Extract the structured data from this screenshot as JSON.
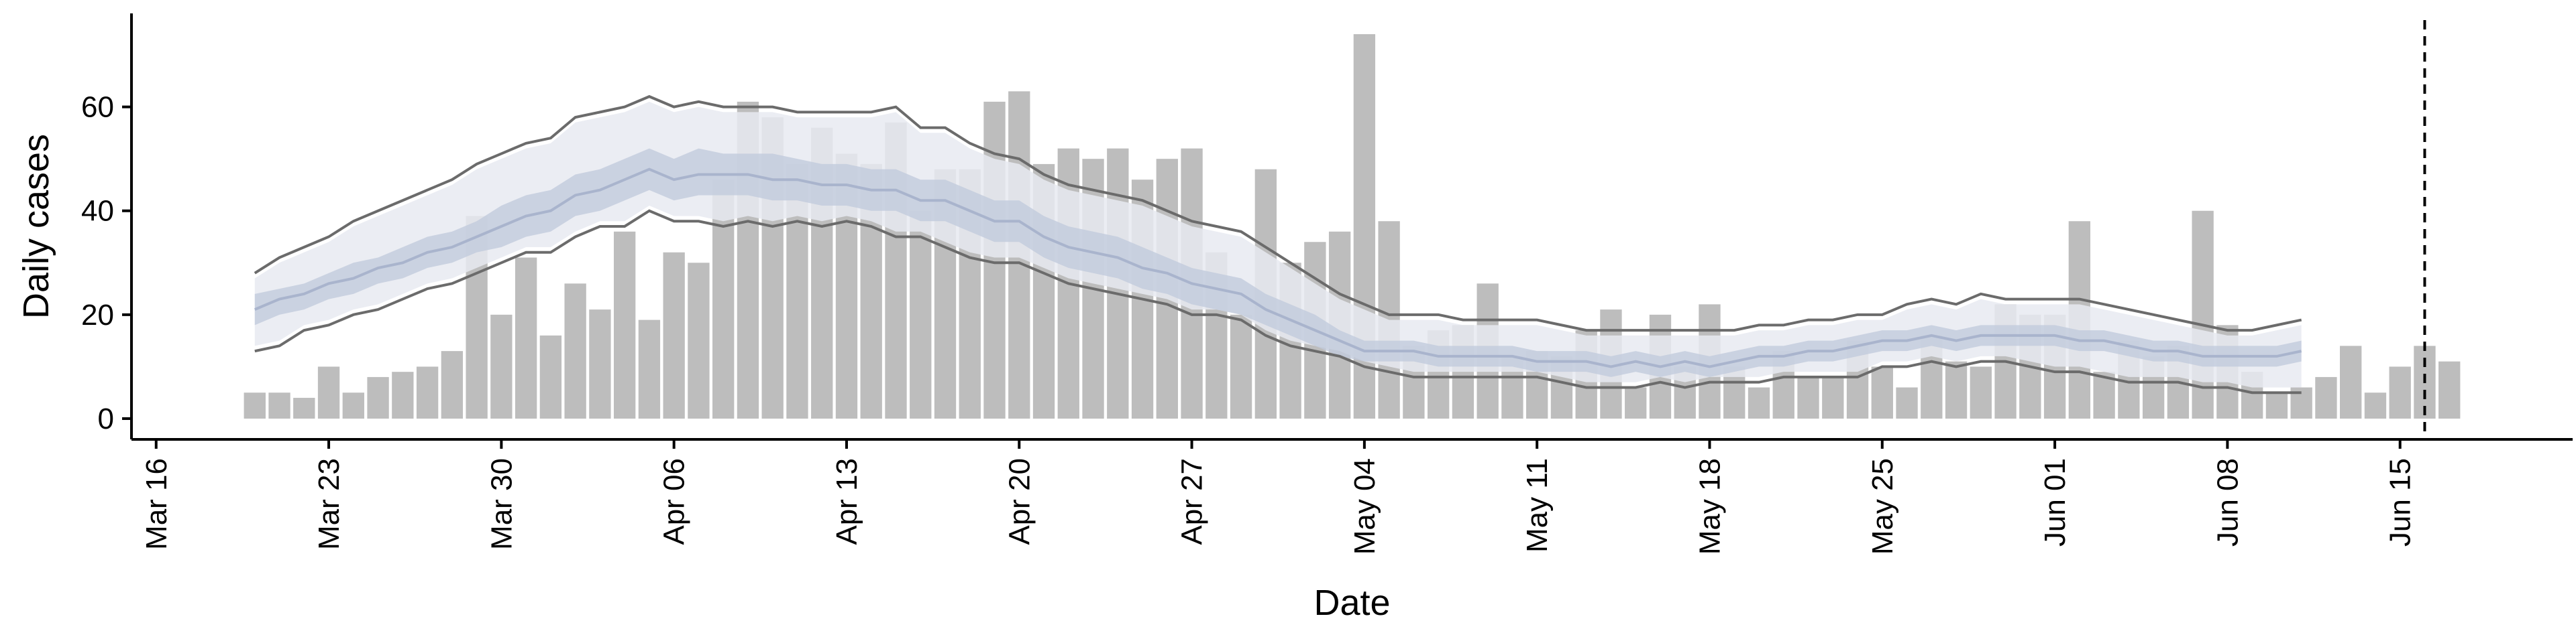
{
  "chart_data": {
    "type": "bar",
    "title": "",
    "xlabel": "Date",
    "ylabel": "Daily cases",
    "ylim": [
      -4,
      78
    ],
    "yticks": [
      0,
      20,
      40,
      60
    ],
    "x_axis_type": "date",
    "xlim": [
      "2020-03-15",
      "2020-06-22"
    ],
    "xticks": [
      {
        "date": "2020-03-16",
        "label": "Mar 16"
      },
      {
        "date": "2020-03-23",
        "label": "Mar 23"
      },
      {
        "date": "2020-03-30",
        "label": "Mar 30"
      },
      {
        "date": "2020-04-06",
        "label": "Apr 06"
      },
      {
        "date": "2020-04-13",
        "label": "Apr 13"
      },
      {
        "date": "2020-04-20",
        "label": "Apr 20"
      },
      {
        "date": "2020-04-27",
        "label": "Apr 27"
      },
      {
        "date": "2020-05-04",
        "label": "May 04"
      },
      {
        "date": "2020-05-11",
        "label": "May 11"
      },
      {
        "date": "2020-05-18",
        "label": "May 18"
      },
      {
        "date": "2020-05-25",
        "label": "May 25"
      },
      {
        "date": "2020-06-01",
        "label": "Jun 01"
      },
      {
        "date": "2020-06-08",
        "label": "Jun 08"
      },
      {
        "date": "2020-06-15",
        "label": "Jun 15"
      }
    ],
    "grid": false,
    "legend": "none",
    "colors": {
      "bars": "#bdbdbd",
      "outer_band": "#e8eaf1",
      "inner_band": "#c2cadc",
      "median_line": "#a9b4cd",
      "bound_lines": "#6b6b6b",
      "vline": "#000000"
    },
    "vline_date": "2020-06-16",
    "bars": {
      "start_date": "2020-03-20",
      "values": [
        5,
        5,
        4,
        10,
        5,
        8,
        9,
        10,
        13,
        39,
        20,
        31,
        16,
        26,
        21,
        36,
        19,
        32,
        30,
        46,
        61,
        58,
        49,
        56,
        51,
        49,
        57,
        40,
        48,
        48,
        61,
        63,
        49,
        52,
        50,
        52,
        46,
        50,
        52,
        32,
        20,
        48,
        30,
        34,
        36,
        74,
        38,
        14,
        17,
        18,
        26,
        12,
        13,
        12,
        17,
        21,
        6,
        20,
        10,
        22,
        10,
        6,
        13,
        8,
        8,
        15,
        10,
        6,
        16,
        11,
        10,
        22,
        20,
        20,
        38,
        9,
        15,
        12,
        14,
        40,
        18,
        9,
        5,
        6,
        8,
        14,
        5,
        10,
        14,
        11
      ]
    },
    "series": [
      {
        "start_date": "2020-03-20",
        "upper": [
          28,
          31,
          33,
          35,
          38,
          40,
          42,
          44,
          46,
          49,
          51,
          53,
          54,
          58,
          59,
          60,
          62,
          60,
          61,
          60,
          60,
          60,
          59,
          59,
          59,
          59,
          60,
          56,
          56,
          53,
          51,
          50,
          47,
          45,
          44,
          43,
          42,
          40,
          38,
          37,
          36,
          33,
          30,
          27,
          24,
          22,
          20,
          20,
          20,
          19,
          19,
          19,
          19,
          18,
          17,
          17,
          17,
          17,
          17,
          17,
          17,
          18,
          18,
          19,
          19,
          20,
          20,
          22,
          23,
          22,
          24,
          23,
          23,
          23,
          23,
          22,
          21,
          20,
          19,
          18,
          17,
          17,
          18,
          19
        ],
        "outer_upper": [
          27,
          30,
          32,
          34,
          37,
          39,
          41,
          43,
          45,
          48,
          50,
          52,
          53,
          57,
          58,
          59,
          61,
          59,
          60,
          59,
          59,
          59,
          58,
          58,
          58,
          58,
          59,
          55,
          55,
          52,
          50,
          49,
          46,
          44,
          43,
          42,
          41,
          39,
          37,
          36,
          35,
          32,
          29,
          26,
          23,
          21,
          19,
          19,
          19,
          18,
          18,
          18,
          18,
          17,
          16,
          16,
          16,
          16,
          16,
          16,
          16,
          17,
          17,
          18,
          18,
          19,
          19,
          21,
          22,
          21,
          23,
          22,
          22,
          22,
          22,
          21,
          20,
          19,
          18,
          17,
          16,
          16,
          17,
          18
        ],
        "inner_upper": [
          24,
          25,
          26,
          28,
          30,
          31,
          33,
          35,
          36,
          38,
          41,
          43,
          44,
          47,
          48,
          50,
          52,
          50,
          52,
          51,
          51,
          51,
          50,
          49,
          49,
          48,
          48,
          46,
          46,
          44,
          42,
          42,
          39,
          37,
          36,
          35,
          33,
          31,
          29,
          28,
          27,
          24,
          22,
          20,
          17,
          15,
          15,
          15,
          14,
          14,
          14,
          14,
          13,
          13,
          13,
          12,
          13,
          12,
          13,
          12,
          13,
          14,
          14,
          15,
          15,
          16,
          17,
          17,
          18,
          17,
          18,
          18,
          18,
          18,
          17,
          17,
          16,
          15,
          15,
          14,
          14,
          14,
          14,
          15
        ],
        "median": [
          21,
          23,
          24,
          26,
          27,
          29,
          30,
          32,
          33,
          35,
          37,
          39,
          40,
          43,
          44,
          46,
          48,
          46,
          47,
          47,
          47,
          46,
          46,
          45,
          45,
          44,
          44,
          42,
          42,
          40,
          38,
          38,
          35,
          33,
          32,
          31,
          29,
          28,
          26,
          25,
          24,
          21,
          19,
          17,
          15,
          13,
          13,
          13,
          12,
          12,
          12,
          12,
          11,
          11,
          11,
          10,
          11,
          10,
          11,
          10,
          11,
          12,
          12,
          13,
          13,
          14,
          15,
          15,
          16,
          15,
          16,
          16,
          16,
          16,
          15,
          15,
          14,
          13,
          13,
          12,
          12,
          12,
          12,
          13
        ],
        "inner_lower": [
          18,
          20,
          21,
          23,
          24,
          26,
          27,
          29,
          30,
          32,
          33,
          35,
          36,
          39,
          40,
          42,
          44,
          42,
          43,
          43,
          43,
          42,
          42,
          41,
          41,
          40,
          40,
          38,
          38,
          36,
          34,
          34,
          31,
          29,
          28,
          27,
          25,
          24,
          22,
          21,
          20,
          18,
          16,
          14,
          12,
          11,
          11,
          11,
          10,
          10,
          10,
          10,
          9,
          9,
          9,
          8,
          9,
          8,
          9,
          8,
          9,
          10,
          10,
          11,
          11,
          12,
          13,
          13,
          14,
          13,
          14,
          14,
          14,
          14,
          13,
          13,
          12,
          11,
          11,
          10,
          10,
          10,
          10,
          11
        ],
        "lower": [
          13,
          14,
          17,
          18,
          20,
          21,
          23,
          25,
          26,
          28,
          30,
          32,
          32,
          35,
          37,
          37,
          40,
          38,
          38,
          37,
          38,
          37,
          38,
          37,
          38,
          37,
          35,
          35,
          33,
          31,
          30,
          30,
          28,
          26,
          25,
          24,
          23,
          22,
          20,
          20,
          19,
          16,
          14,
          13,
          12,
          10,
          9,
          8,
          8,
          8,
          8,
          8,
          8,
          7,
          6,
          6,
          6,
          7,
          6,
          7,
          7,
          7,
          8,
          8,
          8,
          8,
          10,
          10,
          11,
          10,
          11,
          11,
          10,
          9,
          9,
          8,
          7,
          7,
          7,
          6,
          6,
          5,
          5,
          5
        ],
        "outer_lower": [
          14,
          15,
          18,
          19,
          21,
          22,
          24,
          26,
          27,
          29,
          31,
          33,
          33,
          36,
          38,
          38,
          41,
          39,
          39,
          38,
          39,
          38,
          39,
          38,
          39,
          38,
          36,
          36,
          34,
          32,
          31,
          31,
          29,
          27,
          26,
          25,
          24,
          23,
          21,
          21,
          20,
          17,
          15,
          14,
          13,
          11,
          10,
          9,
          9,
          9,
          9,
          9,
          9,
          8,
          7,
          7,
          7,
          8,
          7,
          8,
          8,
          8,
          9,
          9,
          9,
          9,
          11,
          11,
          12,
          11,
          12,
          12,
          11,
          10,
          10,
          9,
          8,
          8,
          8,
          7,
          7,
          6,
          6,
          6
        ]
      }
    ]
  }
}
